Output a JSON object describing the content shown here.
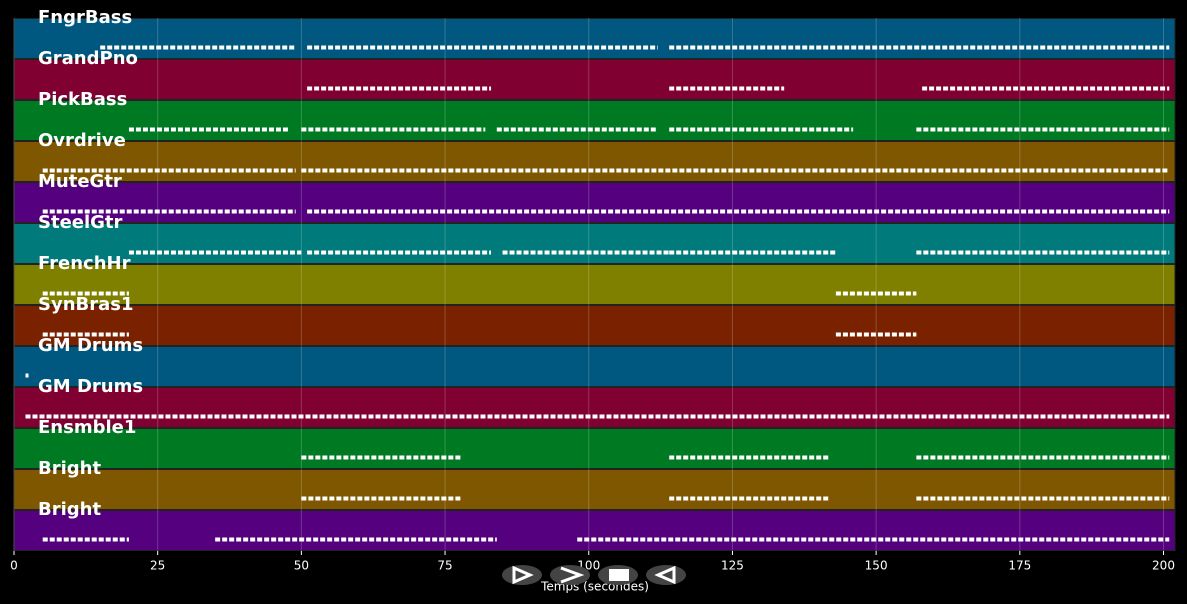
{
  "chart_data": {
    "type": "pianoroll",
    "xlabel": "Temps (secondes)",
    "xlim": [
      0,
      202
    ],
    "xticks": [
      0,
      25,
      50,
      75,
      100,
      125,
      150,
      175,
      200
    ],
    "grid": true,
    "tracks": [
      {
        "name": "FngrBass",
        "color": "#00577f",
        "segments": [
          [
            15,
            49
          ],
          [
            51,
            112
          ],
          [
            114,
            201
          ]
        ]
      },
      {
        "name": "GrandPno",
        "color": "#7f0031",
        "segments": [
          [
            51,
            83
          ],
          [
            114,
            134
          ],
          [
            158,
            201
          ]
        ]
      },
      {
        "name": "PickBass",
        "color": "#007a22",
        "segments": [
          [
            20,
            48
          ],
          [
            50,
            82
          ],
          [
            84,
            112
          ],
          [
            114,
            146
          ],
          [
            157,
            201
          ]
        ]
      },
      {
        "name": "Ovrdrive",
        "color": "#7f5700",
        "segments": [
          [
            5,
            49
          ],
          [
            50,
            201
          ]
        ]
      },
      {
        "name": "MuteGtr",
        "color": "#55007f",
        "segments": [
          [
            5,
            49
          ],
          [
            51,
            201
          ]
        ]
      },
      {
        "name": "SteelGtr",
        "color": "#007a7a",
        "segments": [
          [
            20,
            50
          ],
          [
            51,
            83
          ],
          [
            85,
            114
          ],
          [
            114,
            143
          ],
          [
            157,
            201
          ]
        ]
      },
      {
        "name": "FrenchHr",
        "color": "#7f7f00",
        "segments": [
          [
            5,
            20
          ],
          [
            143,
            157
          ]
        ]
      },
      {
        "name": "SynBras1",
        "color": "#7a2200",
        "segments": [
          [
            5,
            20
          ],
          [
            143,
            157
          ]
        ]
      },
      {
        "name": "GM Drums",
        "color": "#00577f",
        "segments": [
          [
            2,
            2.5
          ]
        ]
      },
      {
        "name": "GM Drums",
        "color": "#7f0031",
        "segments": [
          [
            2,
            201
          ]
        ]
      },
      {
        "name": "Ensmble1",
        "color": "#007a22",
        "segments": [
          [
            50,
            78
          ],
          [
            114,
            142
          ],
          [
            157,
            201
          ]
        ]
      },
      {
        "name": "Bright",
        "color": "#7f5700",
        "segments": [
          [
            50,
            78
          ],
          [
            114,
            142
          ],
          [
            157,
            201
          ]
        ]
      },
      {
        "name": "Bright",
        "color": "#55007f",
        "segments": [
          [
            5,
            20
          ],
          [
            35,
            84
          ],
          [
            98,
            201
          ]
        ]
      }
    ]
  }
}
